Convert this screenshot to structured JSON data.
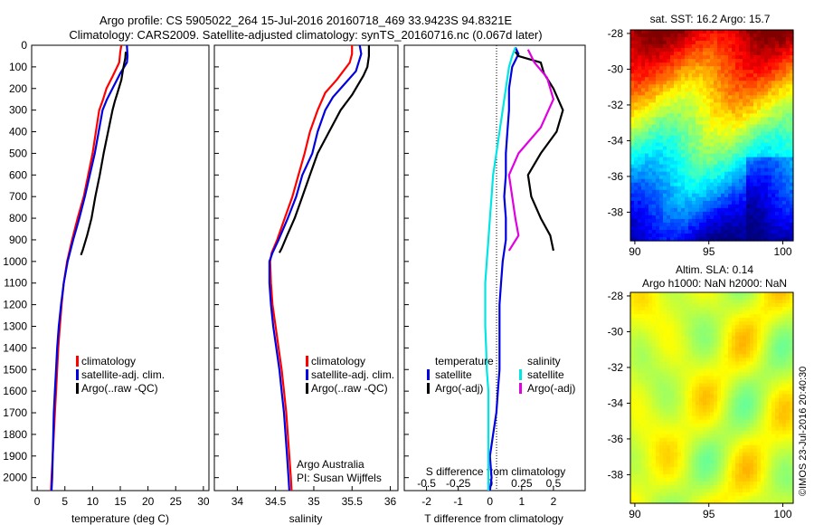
{
  "header": {
    "line1": "Argo profile: CS 5905022_264 15-Jul-2016 20160718_469 33.9423S 94.8321E",
    "line2": "Climatology: CARS2009. Satellite-adjusted climatology: synTS_20160716.nc (0.067d later)"
  },
  "colors": {
    "climatology": "#ff0000",
    "satellite": "#0000e0",
    "argo": "#000000",
    "sat_salinity": "#00e5e5",
    "argo_salinity": "#e000e0"
  },
  "credit": {
    "line1": "Argo Australia",
    "line2": "PI: Susan Wijffels"
  },
  "stamp": "©IMOS 23-Jul-2016 20:40:30",
  "chart_data": [
    {
      "type": "line",
      "xlabel": "temperature (deg C)",
      "xlim": [
        -1,
        31
      ],
      "ylim": [
        2060,
        0
      ],
      "xticks": [
        0,
        5,
        10,
        15,
        20,
        25,
        30
      ],
      "yticks": [
        0,
        100,
        200,
        300,
        400,
        500,
        600,
        700,
        800,
        900,
        1000,
        1100,
        1200,
        1300,
        1400,
        1500,
        1600,
        1700,
        1800,
        1900,
        2000
      ],
      "legend": [
        "climatology",
        "satellite-adj. clim.",
        "Argo(..raw -QC)"
      ],
      "series": [
        {
          "name": "climatology",
          "color": "red",
          "points": [
            [
              15.2,
              0
            ],
            [
              15,
              30
            ],
            [
              14.8,
              80
            ],
            [
              13.5,
              150
            ],
            [
              12.5,
              200
            ],
            [
              11.9,
              250
            ],
            [
              11.2,
              300
            ],
            [
              10.6,
              400
            ],
            [
              10,
              500
            ],
            [
              9.2,
              600
            ],
            [
              8.4,
              700
            ],
            [
              7.3,
              800
            ],
            [
              6.3,
              900
            ],
            [
              5.4,
              1000
            ],
            [
              4.8,
              1100
            ],
            [
              4.4,
              1200
            ],
            [
              4.1,
              1300
            ],
            [
              3.8,
              1400
            ],
            [
              3.6,
              1500
            ],
            [
              3.4,
              1600
            ],
            [
              3.2,
              1700
            ],
            [
              3.0,
              1800
            ],
            [
              2.8,
              1900
            ],
            [
              2.6,
              2000
            ],
            [
              2.5,
              2060
            ]
          ]
        },
        {
          "name": "satellite-adj. clim.",
          "color": "blue",
          "points": [
            [
              16.2,
              0
            ],
            [
              16.3,
              50
            ],
            [
              16.2,
              80
            ],
            [
              15,
              130
            ],
            [
              13.6,
              200
            ],
            [
              12.6,
              250
            ],
            [
              11.8,
              300
            ],
            [
              11.1,
              400
            ],
            [
              10.4,
              500
            ],
            [
              9.5,
              600
            ],
            [
              8.6,
              700
            ],
            [
              7.6,
              800
            ],
            [
              6.5,
              900
            ],
            [
              5.5,
              1000
            ],
            [
              4.8,
              1100
            ],
            [
              4.3,
              1200
            ],
            [
              3.9,
              1300
            ],
            [
              3.6,
              1400
            ],
            [
              3.4,
              1500
            ],
            [
              3.2,
              1600
            ],
            [
              3.0,
              1700
            ],
            [
              2.9,
              1800
            ],
            [
              2.8,
              1900
            ],
            [
              2.7,
              2000
            ],
            [
              2.6,
              2060
            ]
          ]
        },
        {
          "name": "Argo(..raw -QC)",
          "color": "black",
          "points": [
            [
              16.0,
              30
            ],
            [
              15.9,
              60
            ],
            [
              15.5,
              110
            ],
            [
              15.2,
              160
            ],
            [
              14.5,
              220
            ],
            [
              14.0,
              260
            ],
            [
              13.6,
              300
            ],
            [
              12.8,
              400
            ],
            [
              12.0,
              500
            ],
            [
              11.3,
              600
            ],
            [
              10.5,
              700
            ],
            [
              9.8,
              800
            ],
            [
              9.0,
              880
            ],
            [
              8.2,
              950
            ],
            [
              7.9,
              970
            ]
          ]
        }
      ]
    },
    {
      "type": "line",
      "xlabel": "salinity",
      "xlim": [
        33.7,
        36.1
      ],
      "ylim": [
        2060,
        0
      ],
      "xticks": [
        34,
        34.5,
        35,
        35.5,
        36
      ],
      "legend": [
        "climatology",
        "satellite-adj. clim.",
        "Argo(..raw -QC)"
      ],
      "series": [
        {
          "name": "climatology",
          "color": "red",
          "points": [
            [
              35.5,
              0
            ],
            [
              35.5,
              40
            ],
            [
              35.47,
              80
            ],
            [
              35.3,
              160
            ],
            [
              35.15,
              220
            ],
            [
              35.05,
              300
            ],
            [
              34.95,
              400
            ],
            [
              34.88,
              500
            ],
            [
              34.8,
              600
            ],
            [
              34.72,
              700
            ],
            [
              34.62,
              800
            ],
            [
              34.52,
              900
            ],
            [
              34.45,
              960
            ],
            [
              34.43,
              1000
            ],
            [
              34.44,
              1100
            ],
            [
              34.46,
              1200
            ],
            [
              34.5,
              1300
            ],
            [
              34.54,
              1400
            ],
            [
              34.58,
              1500
            ],
            [
              34.61,
              1600
            ],
            [
              34.64,
              1700
            ],
            [
              34.66,
              1800
            ],
            [
              34.68,
              1900
            ],
            [
              34.7,
              2000
            ],
            [
              34.71,
              2060
            ]
          ]
        },
        {
          "name": "satellite-adj. clim.",
          "color": "blue",
          "points": [
            [
              35.6,
              0
            ],
            [
              35.62,
              40
            ],
            [
              35.55,
              120
            ],
            [
              35.4,
              180
            ],
            [
              35.25,
              240
            ],
            [
              35.15,
              300
            ],
            [
              35.05,
              400
            ],
            [
              34.98,
              500
            ],
            [
              34.85,
              600
            ],
            [
              34.77,
              700
            ],
            [
              34.66,
              800
            ],
            [
              34.54,
              900
            ],
            [
              34.46,
              960
            ],
            [
              34.42,
              1000
            ],
            [
              34.42,
              1100
            ],
            [
              34.44,
              1200
            ],
            [
              34.47,
              1300
            ],
            [
              34.51,
              1400
            ],
            [
              34.55,
              1500
            ],
            [
              34.58,
              1600
            ],
            [
              34.61,
              1700
            ],
            [
              34.63,
              1800
            ],
            [
              34.65,
              1900
            ],
            [
              34.67,
              2000
            ],
            [
              34.68,
              2060
            ]
          ]
        },
        {
          "name": "Argo(..raw -QC)",
          "color": "black",
          "points": [
            [
              35.72,
              0
            ],
            [
              35.72,
              50
            ],
            [
              35.7,
              100
            ],
            [
              35.65,
              140
            ],
            [
              35.6,
              170
            ],
            [
              35.5,
              230
            ],
            [
              35.35,
              300
            ],
            [
              35.2,
              400
            ],
            [
              35.05,
              500
            ],
            [
              34.95,
              600
            ],
            [
              34.85,
              700
            ],
            [
              34.75,
              800
            ],
            [
              34.65,
              880
            ],
            [
              34.58,
              940
            ],
            [
              34.55,
              960
            ]
          ]
        }
      ]
    },
    {
      "type": "line",
      "xlabel": "T difference from climatology",
      "top_xlabel": "S difference from climatology",
      "xlim": [
        -2.7,
        3
      ],
      "ylim": [
        2060,
        0
      ],
      "xticks": [
        -2,
        -1,
        0,
        1,
        2
      ],
      "top_ticks_s": [
        -0.5,
        -0.25,
        0,
        0.25,
        0.5
      ],
      "legend": {
        "temperature": [
          "satellite",
          "Argo(-adj)"
        ],
        "salinity": [
          "satellite",
          "Argo(-adj)"
        ]
      },
      "series": [
        {
          "name": "satellite",
          "group": "temperature",
          "color": "blue",
          "points": [
            [
              0.8,
              10
            ],
            [
              0.9,
              40
            ],
            [
              0.7,
              100
            ],
            [
              0.6,
              200
            ],
            [
              0.6,
              300
            ],
            [
              0.55,
              400
            ],
            [
              0.5,
              500
            ],
            [
              0.5,
              600
            ],
            [
              0.45,
              700
            ],
            [
              0.5,
              800
            ],
            [
              0.5,
              900
            ],
            [
              0.4,
              1000
            ],
            [
              0.35,
              1100
            ],
            [
              0.3,
              1200
            ],
            [
              0.3,
              1300
            ],
            [
              0.3,
              1400
            ],
            [
              0.3,
              1500
            ],
            [
              0.25,
              1600
            ],
            [
              0.2,
              1700
            ],
            [
              0.1,
              1800
            ],
            [
              0.0,
              1900
            ],
            [
              0.05,
              2000
            ],
            [
              0.0,
              2060
            ]
          ]
        },
        {
          "name": "Argo(-adj)",
          "group": "temperature",
          "color": "black",
          "points": [
            [
              0.8,
              30
            ],
            [
              0.9,
              50
            ],
            [
              1.6,
              80
            ],
            [
              1.7,
              130
            ],
            [
              2.0,
              200
            ],
            [
              2.3,
              300
            ],
            [
              2.1,
              400
            ],
            [
              1.6,
              500
            ],
            [
              1.2,
              600
            ],
            [
              1.3,
              700
            ],
            [
              1.6,
              800
            ],
            [
              1.9,
              880
            ],
            [
              2.0,
              950
            ]
          ]
        },
        {
          "name": "satellite",
          "group": "salinity",
          "color": "cyan",
          "points": [
            [
              0.8,
              10
            ],
            [
              0.7,
              50
            ],
            [
              0.6,
              100
            ],
            [
              0.5,
              200
            ],
            [
              0.4,
              300
            ],
            [
              0.3,
              400
            ],
            [
              0.2,
              500
            ],
            [
              0.1,
              600
            ],
            [
              0.05,
              700
            ],
            [
              0.0,
              800
            ],
            [
              -0.05,
              900
            ],
            [
              -0.1,
              1000
            ],
            [
              -0.15,
              1100
            ],
            [
              -0.15,
              1200
            ],
            [
              -0.15,
              1300
            ],
            [
              -0.12,
              1400
            ],
            [
              -0.1,
              1500
            ],
            [
              -0.05,
              1600
            ],
            [
              -0.05,
              1700
            ],
            [
              -0.05,
              1800
            ],
            [
              -0.05,
              1900
            ],
            [
              -0.05,
              2000
            ],
            [
              -0.05,
              2060
            ]
          ]
        },
        {
          "name": "Argo(-adj)",
          "group": "salinity",
          "color": "magenta",
          "points": [
            [
              1.2,
              20
            ],
            [
              1.4,
              80
            ],
            [
              1.8,
              150
            ],
            [
              2.0,
              250
            ],
            [
              1.6,
              380
            ],
            [
              0.9,
              500
            ],
            [
              0.6,
              600
            ],
            [
              0.7,
              700
            ],
            [
              0.8,
              800
            ],
            [
              0.9,
              880
            ],
            [
              0.6,
              950
            ]
          ]
        }
      ]
    },
    {
      "type": "heatmap",
      "title": "sat. SST: 16.2 Argo: 15.7",
      "xticks": [
        90,
        95,
        100
      ],
      "yticks": [
        -28,
        -30,
        -32,
        -34,
        -36,
        -38
      ],
      "xlim": [
        89.7,
        100.7
      ],
      "ylim": [
        -39.6,
        -27.8
      ]
    },
    {
      "type": "heatmap",
      "title": "Altim. SLA: 0.14",
      "subtitle": "Argo h1000: NaN h2000: NaN",
      "xticks": [
        90,
        95,
        100
      ],
      "yticks": [
        -28,
        -30,
        -32,
        -34,
        -36,
        -38
      ],
      "xlim": [
        89.7,
        100.7
      ],
      "ylim": [
        -39.6,
        -27.8
      ]
    }
  ]
}
